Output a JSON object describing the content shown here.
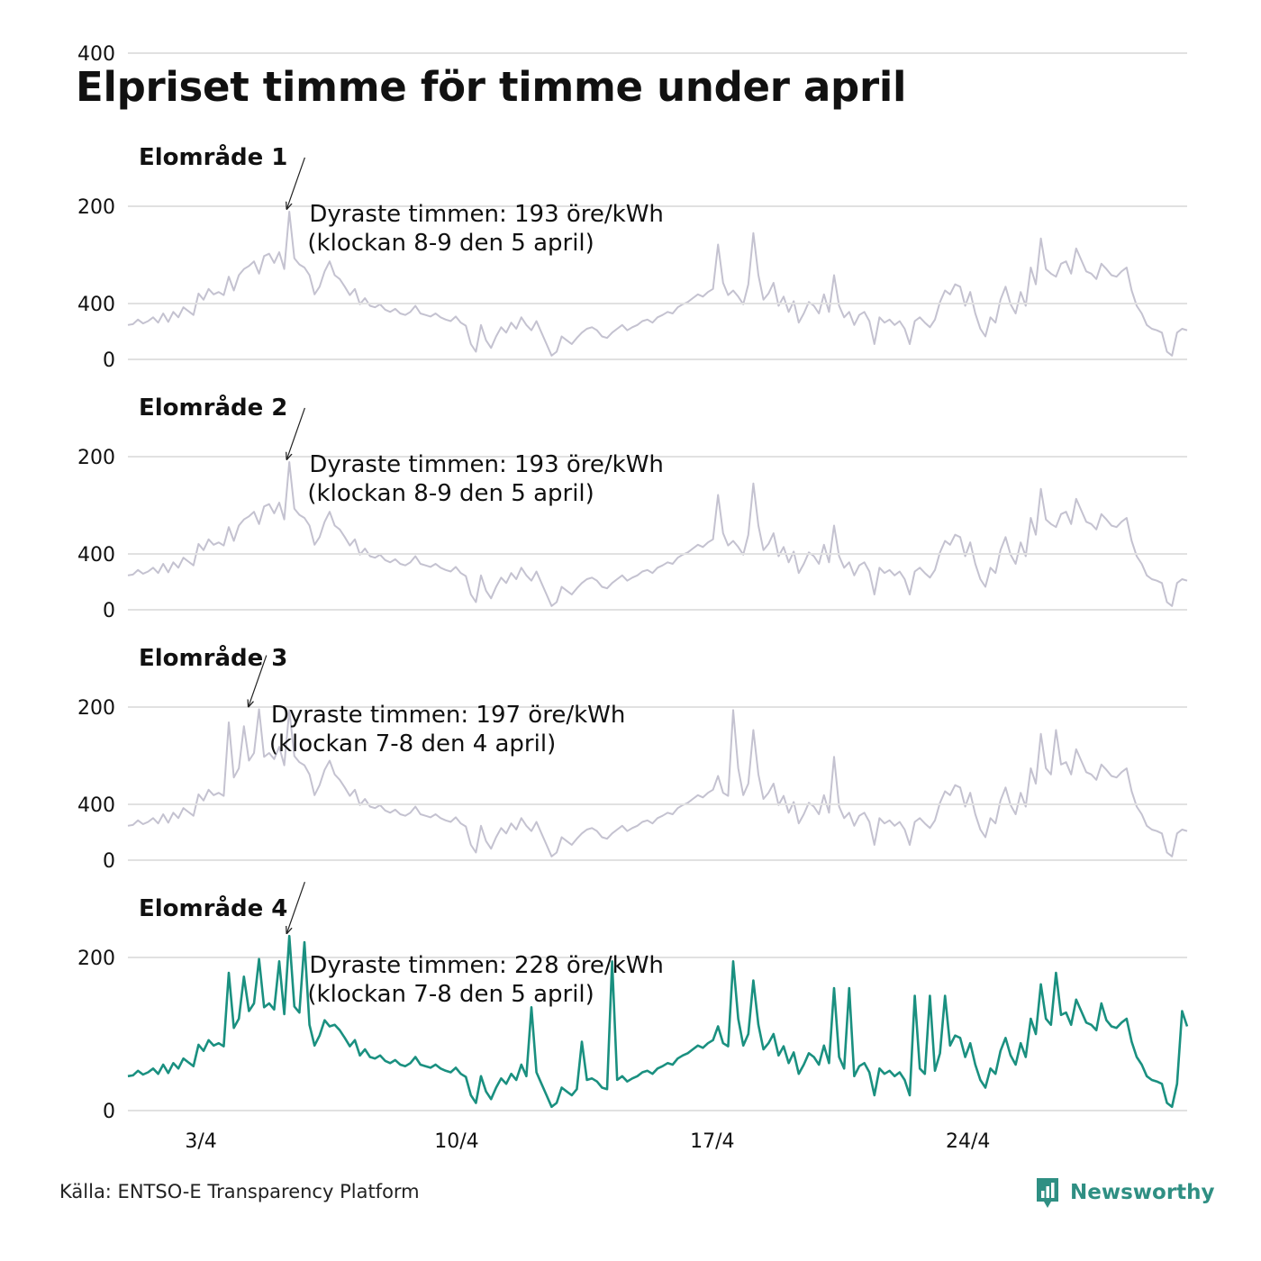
{
  "title": "Elpriset timme för timme under april",
  "source": "Källa: ENTSO-E Transparency Platform",
  "brand": "Newsworthy",
  "colors": {
    "active": "#1a9080",
    "inactive": "#c4c2d0",
    "grid": "#e1e1e1",
    "text": "#111111",
    "brand": "#2f8f83"
  },
  "x_ticks": [
    {
      "label": "3/4",
      "day": 3
    },
    {
      "label": "10/4",
      "day": 10
    },
    {
      "label": "17/4",
      "day": 17
    },
    {
      "label": "24/4",
      "day": 24
    }
  ],
  "chart_data": [
    {
      "type": "line",
      "title": "Elområde 1",
      "ylim": [
        0,
        400
      ],
      "y_ticks": [
        "0",
        "200",
        "400"
      ],
      "x": "Day of April (1–30), time series",
      "highlight": false,
      "annotation": {
        "line1": "Dyraste timmen: 193 öre/kWh",
        "line2": "(klockan 8-9 den 5 april)",
        "day": 5.35,
        "value": 193
      },
      "series": [
        {
          "values": [
            45,
            46,
            52,
            47,
            50,
            55,
            48,
            60,
            49,
            62,
            55,
            68,
            63,
            58,
            86,
            78,
            92,
            85,
            88,
            84,
            108,
            90,
            110,
            118,
            122,
            128,
            112,
            135,
            138,
            126,
            140,
            118,
            193,
            132,
            124,
            120,
            110,
            85,
            95,
            115,
            128,
            110,
            105,
            95,
            84,
            92,
            72,
            80,
            70,
            68,
            72,
            65,
            62,
            66,
            60,
            58,
            62,
            70,
            60,
            58,
            56,
            60,
            55,
            52,
            50,
            56,
            48,
            44,
            20,
            10,
            45,
            25,
            15,
            30,
            42,
            35,
            48,
            40,
            55,
            45,
            38,
            50,
            35,
            20,
            5,
            10,
            30,
            25,
            20,
            28,
            35,
            40,
            42,
            38,
            30,
            28,
            35,
            40,
            45,
            38,
            42,
            45,
            50,
            52,
            48,
            55,
            58,
            62,
            60,
            68,
            72,
            75,
            80,
            85,
            82,
            88,
            92,
            150,
            100,
            84,
            90,
            82,
            72,
            98,
            165,
            110,
            78,
            86,
            100,
            70,
            82,
            62,
            76,
            48,
            60,
            75,
            70,
            60,
            85,
            62,
            110,
            70,
            55,
            62,
            45,
            58,
            62,
            50,
            20,
            55,
            48,
            52,
            45,
            50,
            40,
            20,
            50,
            55,
            48,
            42,
            52,
            75,
            90,
            85,
            98,
            95,
            70,
            88,
            60,
            40,
            30,
            55,
            48,
            78,
            95,
            72,
            60,
            88,
            70,
            120,
            98,
            158,
            118,
            112,
            108,
            125,
            128,
            112,
            145,
            130,
            115,
            112,
            105,
            125,
            118,
            110,
            108,
            115,
            120,
            90,
            70,
            60,
            45,
            40,
            38,
            35,
            10,
            5,
            35,
            40,
            38
          ]
        }
      ]
    },
    {
      "type": "line",
      "title": "Elområde 2",
      "ylim": [
        0,
        400
      ],
      "y_ticks": [
        "0",
        "200",
        "400"
      ],
      "x": "Day of April (1–30), time series",
      "highlight": false,
      "annotation": {
        "line1": "Dyraste timmen: 193 öre/kWh",
        "line2": "(klockan 8-9 den 5 april)",
        "day": 5.35,
        "value": 193
      },
      "series": [
        {
          "values": [
            45,
            46,
            52,
            47,
            50,
            55,
            48,
            60,
            49,
            62,
            55,
            68,
            63,
            58,
            86,
            78,
            92,
            85,
            88,
            84,
            108,
            90,
            110,
            118,
            122,
            128,
            112,
            135,
            138,
            126,
            140,
            118,
            193,
            132,
            124,
            120,
            110,
            85,
            95,
            115,
            128,
            110,
            105,
            95,
            84,
            92,
            72,
            80,
            70,
            68,
            72,
            65,
            62,
            66,
            60,
            58,
            62,
            70,
            60,
            58,
            56,
            60,
            55,
            52,
            50,
            56,
            48,
            44,
            20,
            10,
            45,
            25,
            15,
            30,
            42,
            35,
            48,
            40,
            55,
            45,
            38,
            50,
            35,
            20,
            5,
            10,
            30,
            25,
            20,
            28,
            35,
            40,
            42,
            38,
            30,
            28,
            35,
            40,
            45,
            38,
            42,
            45,
            50,
            52,
            48,
            55,
            58,
            62,
            60,
            68,
            72,
            75,
            80,
            85,
            82,
            88,
            92,
            150,
            100,
            84,
            90,
            82,
            72,
            98,
            165,
            110,
            78,
            86,
            100,
            70,
            82,
            62,
            76,
            48,
            60,
            75,
            70,
            60,
            85,
            62,
            110,
            70,
            55,
            62,
            45,
            58,
            62,
            50,
            20,
            55,
            48,
            52,
            45,
            50,
            40,
            20,
            50,
            55,
            48,
            42,
            52,
            75,
            90,
            85,
            98,
            95,
            70,
            88,
            60,
            40,
            30,
            55,
            48,
            78,
            95,
            72,
            60,
            88,
            70,
            120,
            98,
            158,
            118,
            112,
            108,
            125,
            128,
            112,
            145,
            130,
            115,
            112,
            105,
            125,
            118,
            110,
            108,
            115,
            120,
            90,
            70,
            60,
            45,
            40,
            38,
            35,
            10,
            5,
            35,
            40,
            38
          ]
        }
      ]
    },
    {
      "type": "line",
      "title": "Elområde 3",
      "ylim": [
        0,
        400
      ],
      "y_ticks": [
        "0",
        "200",
        "400"
      ],
      "x": "Day of April (1–30), time series",
      "highlight": false,
      "annotation": {
        "line1": "Dyraste timmen: 197 öre/kWh",
        "line2": "(klockan 7-8 den 4 april)",
        "day": 4.3,
        "value": 197
      },
      "series": [
        {
          "values": [
            45,
            46,
            52,
            47,
            50,
            55,
            48,
            60,
            49,
            62,
            55,
            68,
            63,
            58,
            86,
            78,
            92,
            85,
            88,
            84,
            180,
            108,
            120,
            175,
            130,
            140,
            197,
            135,
            140,
            132,
            148,
            124,
            196,
            136,
            128,
            124,
            112,
            85,
            98,
            118,
            130,
            112,
            105,
            95,
            84,
            92,
            72,
            80,
            70,
            68,
            72,
            65,
            62,
            66,
            60,
            58,
            62,
            70,
            60,
            58,
            56,
            60,
            55,
            52,
            50,
            56,
            48,
            44,
            20,
            10,
            45,
            25,
            15,
            30,
            42,
            35,
            48,
            40,
            55,
            45,
            38,
            50,
            35,
            20,
            5,
            10,
            30,
            25,
            20,
            28,
            35,
            40,
            42,
            38,
            30,
            28,
            35,
            40,
            45,
            38,
            42,
            45,
            50,
            52,
            48,
            55,
            58,
            62,
            60,
            68,
            72,
            75,
            80,
            85,
            82,
            88,
            92,
            110,
            88,
            84,
            196,
            120,
            85,
            100,
            170,
            112,
            80,
            88,
            100,
            72,
            84,
            62,
            76,
            48,
            60,
            75,
            70,
            60,
            85,
            62,
            135,
            70,
            55,
            62,
            45,
            58,
            62,
            50,
            20,
            55,
            48,
            52,
            45,
            50,
            40,
            20,
            50,
            55,
            48,
            42,
            52,
            75,
            90,
            85,
            98,
            95,
            70,
            88,
            60,
            40,
            30,
            55,
            48,
            78,
            95,
            72,
            60,
            88,
            70,
            120,
            100,
            165,
            120,
            112,
            170,
            125,
            128,
            112,
            145,
            130,
            115,
            112,
            105,
            125,
            118,
            110,
            108,
            115,
            120,
            90,
            70,
            60,
            45,
            40,
            38,
            35,
            10,
            5,
            35,
            40,
            38
          ]
        }
      ]
    },
    {
      "type": "line",
      "title": "Elområde 4",
      "ylim": [
        0,
        400
      ],
      "y_ticks": [
        "0",
        "200",
        "400"
      ],
      "x": "Day of April (1–30), time series",
      "highlight": true,
      "annotation": {
        "line1": "Dyraste timmen: 228 öre/kWh",
        "line2": "(klockan 7-8 den 5 april)",
        "day": 5.35,
        "value": 228
      },
      "series": [
        {
          "values": [
            45,
            46,
            52,
            47,
            50,
            55,
            48,
            60,
            49,
            62,
            55,
            68,
            63,
            58,
            86,
            78,
            92,
            85,
            88,
            84,
            180,
            108,
            120,
            175,
            130,
            140,
            198,
            135,
            140,
            132,
            195,
            126,
            228,
            136,
            128,
            220,
            112,
            85,
            98,
            118,
            110,
            112,
            105,
            95,
            84,
            92,
            72,
            80,
            70,
            68,
            72,
            65,
            62,
            66,
            60,
            58,
            62,
            70,
            60,
            58,
            56,
            60,
            55,
            52,
            50,
            56,
            48,
            44,
            20,
            10,
            45,
            25,
            15,
            30,
            42,
            35,
            48,
            40,
            60,
            45,
            135,
            50,
            35,
            20,
            5,
            10,
            30,
            25,
            20,
            28,
            90,
            40,
            42,
            38,
            30,
            28,
            195,
            40,
            45,
            38,
            42,
            45,
            50,
            52,
            48,
            55,
            58,
            62,
            60,
            68,
            72,
            75,
            80,
            85,
            82,
            88,
            92,
            110,
            88,
            84,
            195,
            120,
            85,
            100,
            170,
            112,
            80,
            88,
            100,
            72,
            84,
            62,
            76,
            48,
            60,
            75,
            70,
            60,
            85,
            62,
            160,
            70,
            55,
            160,
            45,
            58,
            62,
            50,
            20,
            55,
            48,
            52,
            45,
            50,
            40,
            20,
            150,
            55,
            48,
            150,
            52,
            75,
            150,
            85,
            98,
            95,
            70,
            88,
            60,
            40,
            30,
            55,
            48,
            78,
            95,
            72,
            60,
            88,
            70,
            120,
            100,
            165,
            120,
            112,
            180,
            125,
            128,
            112,
            145,
            130,
            115,
            112,
            105,
            140,
            118,
            110,
            108,
            115,
            120,
            90,
            70,
            60,
            45,
            40,
            38,
            35,
            10,
            5,
            35,
            130,
            110
          ]
        }
      ]
    }
  ]
}
